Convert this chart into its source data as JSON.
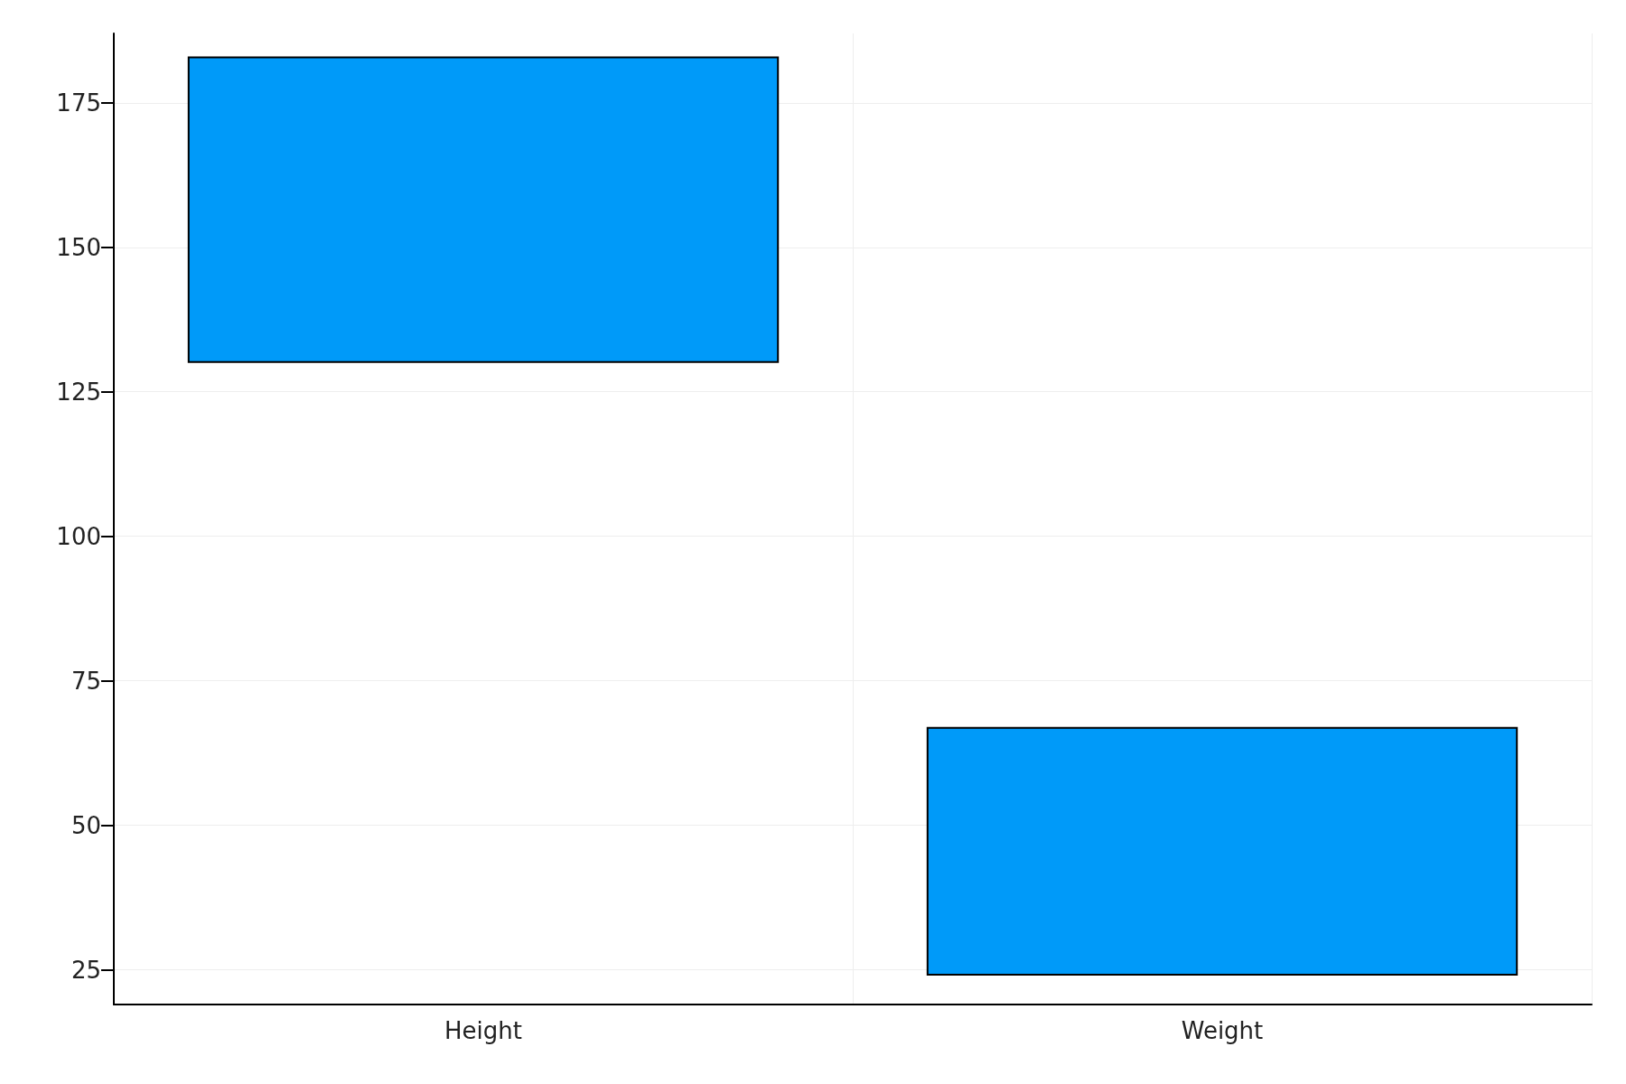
{
  "chart_data": {
    "type": "bar",
    "categories": [
      "Height",
      "Weight"
    ],
    "base": [
      130,
      24
    ],
    "values": [
      53,
      43
    ],
    "color": "#009af9",
    "ylim": [
      19,
      187
    ],
    "yticks": [
      25,
      50,
      75,
      100,
      125,
      150,
      175
    ],
    "grid": true
  }
}
